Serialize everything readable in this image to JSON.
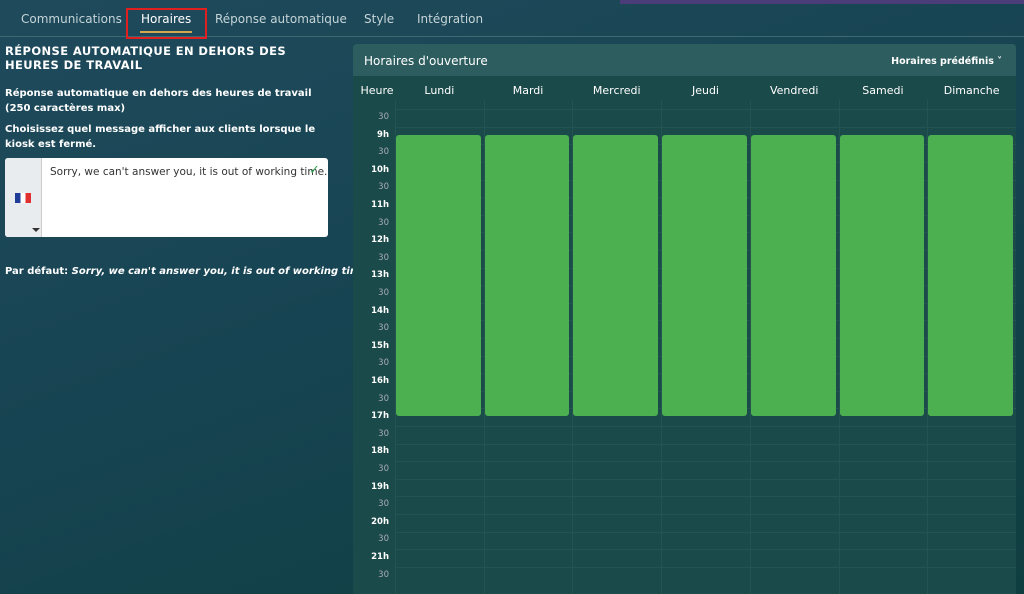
{
  "tabs": [
    "Communications",
    "Horaires",
    "Réponse automatique",
    "Style",
    "Intégration"
  ],
  "left": {
    "heading": "RÉPONSE AUTOMATIQUE EN DEHORS DES HEURES DE TRAVAIL",
    "label1": "Réponse automatique en dehors des heures de travail (250 caractères max)",
    "label2": "Choisissez quel message afficher aux clients lorsque le kiosk est fermé.",
    "message": "Sorry, we can't answer you, it is out of working time.",
    "default_label": "Par défaut:",
    "default_text": "Sorry, we can't answer you, it is out of working time."
  },
  "schedule": {
    "title": "Horaires d'ouverture",
    "preset": "Horaires prédéfinis",
    "hour_header": "Heure",
    "days": [
      "Lundi",
      "Mardi",
      "Mercredi",
      "Jeudi",
      "Vendredi",
      "Samedi",
      "Dimanche"
    ],
    "time_labels": [
      "30",
      "9h",
      "30",
      "10h",
      "30",
      "11h",
      "30",
      "12h",
      "30",
      "13h",
      "30",
      "14h",
      "30",
      "15h",
      "30",
      "16h",
      "30",
      "17h",
      "30",
      "18h",
      "30",
      "19h",
      "30",
      "20h",
      "30",
      "21h",
      "30"
    ]
  }
}
